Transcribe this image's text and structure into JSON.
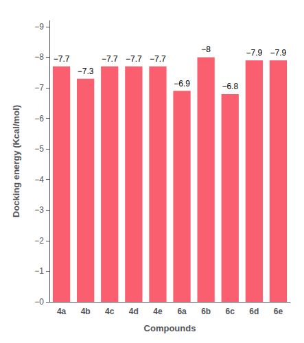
{
  "chart_data": {
    "type": "bar",
    "xlabel": "Compounds",
    "ylabel": "Docking energy (Kcal/mol)",
    "categories": [
      "4a",
      "4b",
      "4c",
      "4d",
      "4e",
      "6a",
      "6b",
      "6c",
      "6d",
      "6e"
    ],
    "values": [
      -7.7,
      -7.3,
      -7.7,
      -7.7,
      -7.7,
      -6.9,
      -8.0,
      -6.8,
      -7.9,
      -7.9
    ],
    "value_labels": [
      "−7.7",
      "−7.3",
      "−7.7",
      "−7.7",
      "−7.7",
      "−6.9",
      "−8",
      "−6.8",
      "−7.9",
      "−7.9"
    ],
    "data_labels": true,
    "color": "#F95F6E",
    "ylim": [
      0,
      -9.2
    ],
    "yticks": [
      {
        "value": 0,
        "label": "−0"
      },
      {
        "value": -1,
        "label": "−1"
      },
      {
        "value": -2,
        "label": "−2"
      },
      {
        "value": -3,
        "label": "−3"
      },
      {
        "value": -4,
        "label": "−4"
      },
      {
        "value": -5,
        "label": "−5"
      },
      {
        "value": -6,
        "label": "−6"
      },
      {
        "value": -7,
        "label": "−7"
      },
      {
        "value": -8,
        "label": "−8"
      },
      {
        "value": -9,
        "label": "−9"
      }
    ],
    "grid": false
  }
}
